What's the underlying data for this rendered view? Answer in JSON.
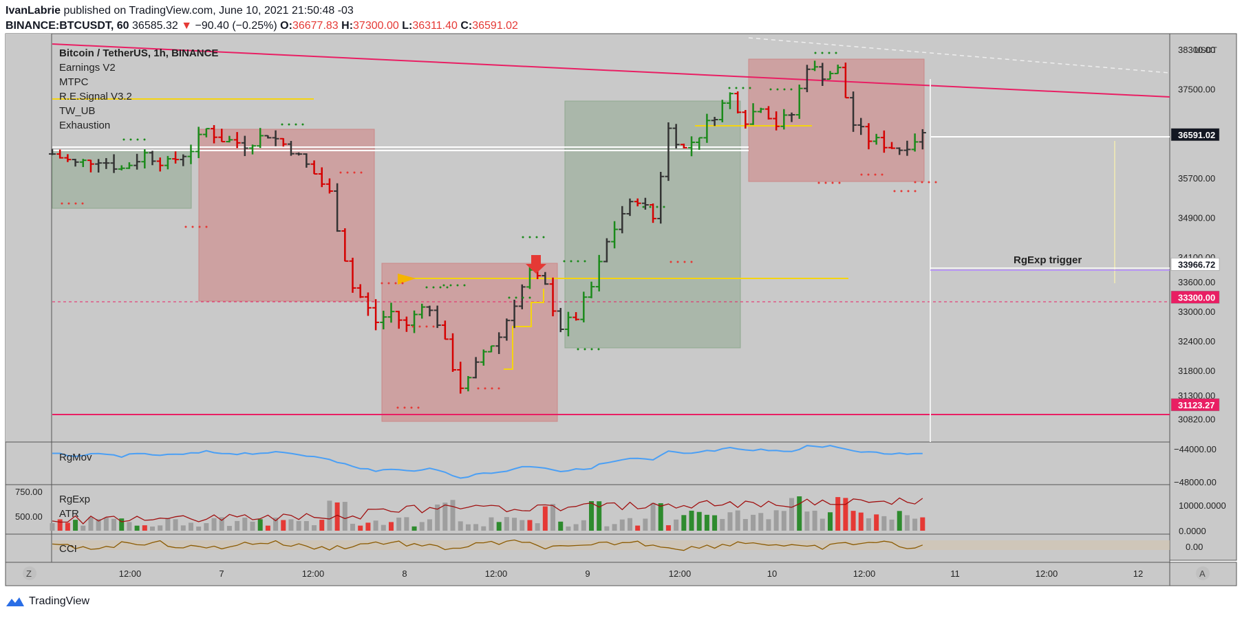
{
  "header": {
    "author": "IvanLabrie",
    "published_text": "published on TradingView.com, June 10, 2021 21:50:48 -03",
    "symbol": "BINANCE:BTCUSDT, 60",
    "last": "36585.32",
    "change": "−90.40 (−0.25%)",
    "o_label": "O:",
    "o_val": "36677.83",
    "h_label": "H:",
    "h_val": "37300.00",
    "l_label": "L:",
    "l_val": "36311.40",
    "c_label": "C:",
    "c_val": "36591.02"
  },
  "legend": {
    "title": "Bitcoin / TetherUS, 1h, BINANCE",
    "indicators": [
      "Earnings V2",
      "MTPC",
      "R.E.Signal V3.2",
      "TW_UB",
      "Exhaustion"
    ]
  },
  "annotation": "RgExp trigger",
  "footer": {
    "brand": "TradingView",
    "z_button": "Z",
    "a_button": "A"
  },
  "panes": {
    "rgmov": {
      "label": "RgMov",
      "ticks": [
        "−44000.00",
        "−48000.00"
      ]
    },
    "rgexp": {
      "label1": "RgExp",
      "label2": "ATR",
      "left_ticks": [
        "750.00",
        "500.00"
      ],
      "right_ticks": [
        "10000.0000",
        "0.0000"
      ]
    },
    "cci": {
      "label": "CCI",
      "ticks": [
        "0.00"
      ]
    }
  },
  "colors": {
    "up": "#1b8a1b",
    "down": "#d50000",
    "neutral": "#333333",
    "bg": "#c9c9c9",
    "resistance": "#e91e63",
    "yellow": "#f5d40f"
  },
  "chart_data": {
    "type": "ohlc",
    "title": "Bitcoin / TetherUS, 1h, BINANCE",
    "currency": "USDT",
    "x_ticks": [
      "12:00",
      "7",
      "12:00",
      "8",
      "12:00",
      "9",
      "12:00",
      "10",
      "12:00",
      "11",
      "12:00",
      "12"
    ],
    "y_ticks": [
      38300,
      37500,
      36591.02,
      35700,
      34900,
      34100,
      33966.72,
      33600,
      33300,
      33000,
      32400,
      31800,
      31300,
      31123.27,
      30820
    ],
    "price_labels": [
      {
        "value": "36591.02",
        "color": "#131722"
      },
      {
        "value": "33966.72",
        "color": "#ffffff"
      },
      {
        "value": "33300.00",
        "color": "#e91e63"
      },
      {
        "value": "31123.27",
        "color": "#e91e63"
      }
    ],
    "ylim": [
      30550,
      38550
    ],
    "close_path": [
      [
        0,
        36200
      ],
      [
        6,
        36000
      ],
      [
        12,
        36100
      ],
      [
        18,
        35900
      ],
      [
        24,
        36200
      ],
      [
        30,
        36000
      ],
      [
        36,
        36300
      ],
      [
        40,
        36700
      ],
      [
        44,
        36500
      ],
      [
        50,
        36400
      ],
      [
        56,
        36600
      ],
      [
        62,
        36300
      ],
      [
        68,
        35800
      ],
      [
        72,
        35400
      ],
      [
        75,
        34400
      ],
      [
        78,
        33500
      ],
      [
        80,
        33300
      ],
      [
        84,
        32800
      ],
      [
        88,
        33000
      ],
      [
        92,
        32700
      ],
      [
        96,
        33200
      ],
      [
        100,
        32800
      ],
      [
        104,
        31900
      ],
      [
        106,
        31500
      ],
      [
        108,
        31600
      ],
      [
        112,
        32200
      ],
      [
        116,
        32500
      ],
      [
        120,
        33200
      ],
      [
        124,
        33800
      ],
      [
        128,
        33500
      ],
      [
        132,
        32700
      ],
      [
        136,
        32900
      ],
      [
        140,
        33500
      ],
      [
        144,
        34400
      ],
      [
        148,
        35000
      ],
      [
        152,
        35300
      ],
      [
        156,
        34900
      ],
      [
        160,
        36700
      ],
      [
        164,
        36300
      ],
      [
        168,
        36600
      ],
      [
        172,
        37000
      ],
      [
        176,
        37400
      ],
      [
        180,
        36900
      ],
      [
        184,
        37200
      ],
      [
        188,
        36800
      ],
      [
        192,
        37000
      ],
      [
        196,
        38000
      ],
      [
        200,
        37800
      ],
      [
        204,
        37900
      ],
      [
        208,
        36800
      ],
      [
        212,
        36500
      ],
      [
        216,
        36400
      ],
      [
        220,
        36300
      ],
      [
        224,
        36500
      ],
      [
        226,
        36600
      ],
      [
        227,
        36591
      ]
    ],
    "series": [
      {
        "name": "RgMov"
      },
      {
        "name": "RgExp"
      },
      {
        "name": "ATR"
      },
      {
        "name": "CCI"
      }
    ]
  }
}
